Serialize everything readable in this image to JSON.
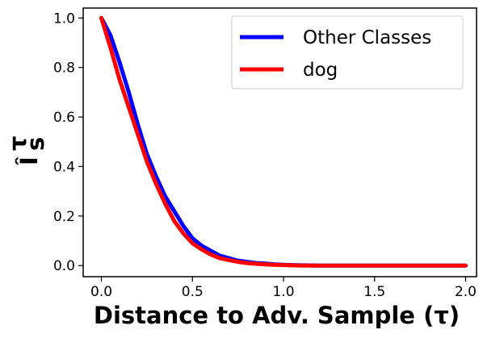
{
  "chart_data": {
    "type": "line",
    "title": "",
    "xlabel": "Distance to Adv. Sample (τ)",
    "ylabel": "Î",
    "ylabel_super": "τ",
    "ylabel_sub": "s",
    "xlim": [
      -0.1,
      2.06
    ],
    "ylim": [
      -0.045,
      1.04
    ],
    "xticks": [
      0.0,
      0.5,
      1.0,
      1.5,
      2.0
    ],
    "xtick_labels": [
      "0.0",
      "0.5",
      "1.0",
      "1.5",
      "2.0"
    ],
    "yticks": [
      0.0,
      0.2,
      0.4,
      0.6,
      0.8,
      1.0
    ],
    "ytick_labels": [
      "0.0",
      "0.2",
      "0.4",
      "0.6",
      "0.8",
      "1.0"
    ],
    "grid": false,
    "legend_position": "top-right",
    "series": [
      {
        "name": "Other Classes",
        "color": "#0000ff",
        "x": [
          0.0,
          0.05,
          0.1,
          0.15,
          0.2,
          0.25,
          0.3,
          0.35,
          0.4,
          0.45,
          0.5,
          0.55,
          0.6,
          0.65,
          0.7,
          0.75,
          0.8,
          0.85,
          0.9,
          0.95,
          1.0,
          1.05,
          1.1,
          1.2,
          1.3,
          1.4,
          1.5,
          1.6,
          1.7,
          1.8,
          1.9,
          2.0
        ],
        "y": [
          1.0,
          0.93,
          0.82,
          0.7,
          0.57,
          0.45,
          0.36,
          0.28,
          0.22,
          0.16,
          0.11,
          0.08,
          0.06,
          0.04,
          0.03,
          0.02,
          0.015,
          0.01,
          0.008,
          0.005,
          0.003,
          0.002,
          0.001,
          0.0,
          0.0,
          0.0,
          0.0,
          0.0,
          0.0,
          0.0,
          0.0,
          0.0
        ]
      },
      {
        "name": "dog",
        "color": "#ff0000",
        "x": [
          0.0,
          0.05,
          0.1,
          0.15,
          0.2,
          0.25,
          0.3,
          0.35,
          0.4,
          0.45,
          0.5,
          0.55,
          0.6,
          0.65,
          0.7,
          0.75,
          0.8,
          0.85,
          0.9,
          0.95,
          1.0,
          1.05,
          1.1,
          1.2,
          1.3,
          1.4,
          1.5,
          1.6,
          1.7,
          1.8,
          1.9,
          2.0
        ],
        "y": [
          1.0,
          0.88,
          0.75,
          0.64,
          0.53,
          0.42,
          0.33,
          0.25,
          0.18,
          0.13,
          0.09,
          0.065,
          0.045,
          0.03,
          0.022,
          0.015,
          0.01,
          0.007,
          0.005,
          0.003,
          0.002,
          0.001,
          0.0,
          0.0,
          0.0,
          0.0,
          0.0,
          0.0,
          0.0,
          0.0,
          0.0,
          0.0
        ]
      }
    ]
  }
}
